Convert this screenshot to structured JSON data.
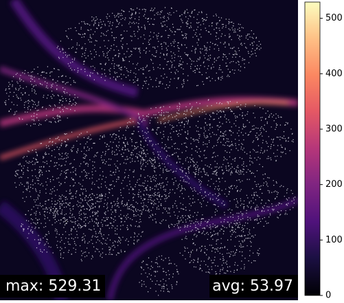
{
  "chart_data": {
    "type": "heatmap",
    "annotations": [
      "max: 529.31",
      "avg: 53.97"
    ],
    "colormap": "magma",
    "colorbar_lim": [
      0,
      529.31
    ],
    "colorbar_ticks": [
      0,
      100,
      200,
      300,
      400,
      500
    ]
  }
}
